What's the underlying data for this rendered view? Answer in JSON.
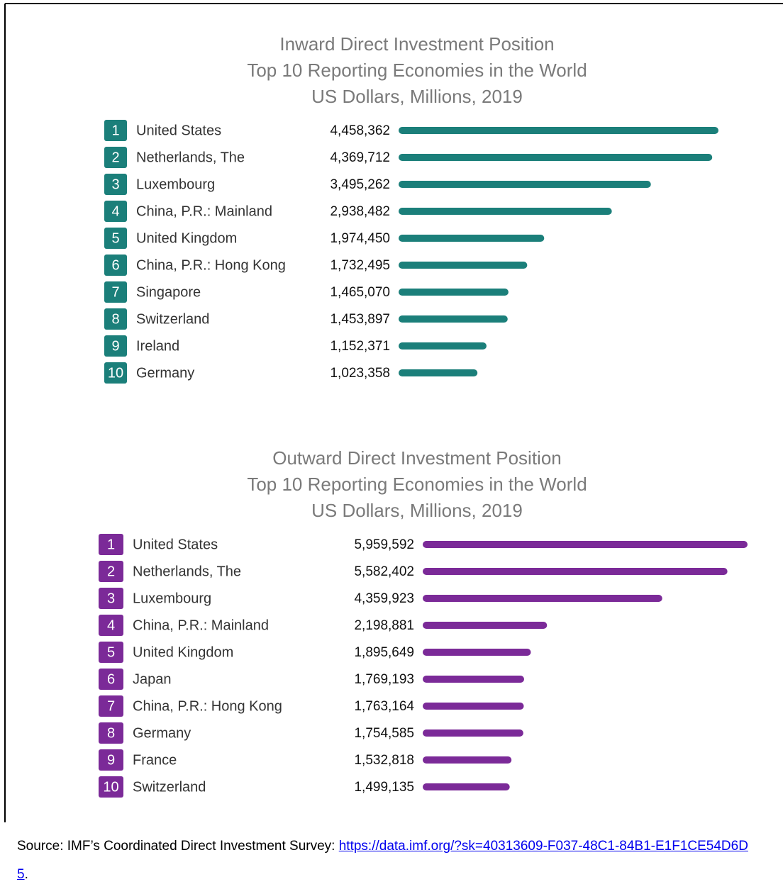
{
  "chart_data": [
    {
      "type": "bar",
      "orientation": "horizontal",
      "title": "Inward Direct Investment Position",
      "subtitle": "Top 10 Reporting Economies in the World",
      "units": "US Dollars, Millions, 2019",
      "color": "#1b7f7a",
      "ranks": [
        1,
        2,
        3,
        4,
        5,
        6,
        7,
        8,
        9,
        10
      ],
      "categories": [
        "United States",
        "Netherlands, The",
        "Luxembourg",
        "China, P.R.: Mainland",
        "United Kingdom",
        "China, P.R.: Hong Kong",
        "Singapore",
        "Switzerland",
        "Ireland",
        "Germany"
      ],
      "values": [
        4458362,
        4369712,
        3495262,
        2938482,
        1974450,
        1732495,
        1465070,
        1453897,
        1152371,
        1023358
      ],
      "value_labels": [
        "4,458,362",
        "4,369,712",
        "3,495,262",
        "2,938,482",
        "1,974,450",
        "1,732,495",
        "1,465,070",
        "1,453,897",
        "1,152,371",
        "1,023,358"
      ]
    },
    {
      "type": "bar",
      "orientation": "horizontal",
      "title": "Outward Direct Investment Position",
      "subtitle": "Top 10 Reporting Economies in the World",
      "units": "US Dollars, Millions, 2019",
      "color": "#7b2a98",
      "ranks": [
        1,
        2,
        3,
        4,
        5,
        6,
        7,
        8,
        9,
        10
      ],
      "categories": [
        "United States",
        "Netherlands, The",
        "Luxembourg",
        "China, P.R.: Mainland",
        "United Kingdom",
        "Japan",
        "China, P.R.: Hong Kong",
        "Germany",
        "France",
        "Switzerland"
      ],
      "values": [
        5959592,
        5582402,
        4359923,
        2198881,
        1895649,
        1769193,
        1763164,
        1754585,
        1532818,
        1499135
      ],
      "value_labels": [
        "5,959,592",
        "5,582,402",
        "4,359,923",
        "2,198,881",
        "1,895,649",
        "1,769,193",
        "1,763,164",
        "1,754,585",
        "1,532,818",
        "1,499,135"
      ]
    }
  ],
  "source": {
    "text": "Source: IMF’s Coordinated Direct Investment Survey:",
    "link": "https://data.imf.org/?sk=40313609-F037-48C1-84B1-E1F1CE54D6D5",
    "suffix": "."
  }
}
